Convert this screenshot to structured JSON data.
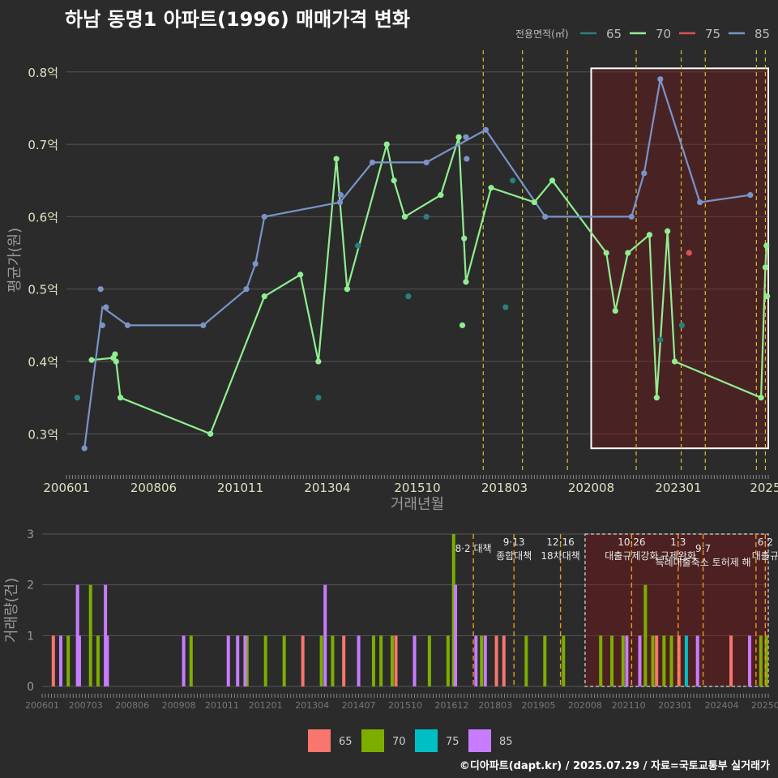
{
  "title": "하남 동명1 아파트(1996) 매매가격 변화",
  "footer": "©디아파트(dapt.kr) / 2025.07.29 / 자료=국토교통부 실거래가",
  "legend_title": "전용면적(㎡)",
  "colors": {
    "bg": "#2b2b2b",
    "s65": "#2a7f80",
    "s70": "#90ee90",
    "s75": "#e05050",
    "s85": "#7b93c8",
    "b65": "#f8766d",
    "b70": "#7cae00",
    "b75": "#00bfc4",
    "b85": "#c77cff"
  },
  "chart_data": [
    {
      "type": "line",
      "ylabel": "평균가(원)",
      "xlabel": "거래년월",
      "ylim": [
        0.25,
        0.83
      ],
      "y_ticks": [
        {
          "v": 0.3,
          "label": "0.3억"
        },
        {
          "v": 0.4,
          "label": "0.4억"
        },
        {
          "v": 0.5,
          "label": "0.5억"
        },
        {
          "v": 0.6,
          "label": "0.6억"
        },
        {
          "v": 0.7,
          "label": "0.7억"
        },
        {
          "v": 0.8,
          "label": "0.8억"
        }
      ],
      "x_ticks": [
        {
          "v": 2006.0,
          "label": "200601"
        },
        {
          "v": 2008.42,
          "label": "200806"
        },
        {
          "v": 2010.83,
          "label": "201011"
        },
        {
          "v": 2013.25,
          "label": "201304"
        },
        {
          "v": 2015.75,
          "label": "201510"
        },
        {
          "v": 2018.17,
          "label": "201803"
        },
        {
          "v": 2020.58,
          "label": "202008"
        },
        {
          "v": 2023.0,
          "label": "202301"
        },
        {
          "v": 2025.42,
          "label": "2025"
        }
      ],
      "xlim": [
        2006.0,
        2025.5
      ],
      "legend": [
        {
          "name": "65",
          "color": "#2a7f80"
        },
        {
          "name": "70",
          "color": "#90ee90"
        },
        {
          "name": "75",
          "color": "#e05050"
        },
        {
          "name": "85",
          "color": "#7b93c8"
        }
      ],
      "highlight": {
        "x0": 2020.58,
        "x1": 2025.5,
        "y0": 0.28,
        "y1": 0.805
      },
      "policy_lines": [
        2017.58,
        2018.67,
        2019.92,
        2021.83,
        2023.08,
        2023.75,
        2025.17,
        2025.42
      ],
      "points": {
        "65": [
          [
            2006.3,
            0.35
          ],
          [
            2013.0,
            0.35
          ],
          [
            2014.1,
            0.56
          ],
          [
            2015.5,
            0.49
          ],
          [
            2016.0,
            0.6
          ],
          [
            2018.2,
            0.475
          ],
          [
            2018.4,
            0.65
          ],
          [
            2022.5,
            0.43
          ],
          [
            2023.1,
            0.45
          ]
        ],
        "75": [
          [
            2023.3,
            0.55
          ]
        ],
        "70": [
          [
            2006.7,
            0.402
          ],
          [
            2007.3,
            0.405
          ],
          [
            2007.35,
            0.41
          ],
          [
            2007.38,
            0.4
          ],
          [
            2007.5,
            0.35
          ],
          [
            2010.0,
            0.3
          ],
          [
            2011.5,
            0.49
          ],
          [
            2012.5,
            0.52
          ],
          [
            2013.0,
            0.4
          ],
          [
            2013.5,
            0.68
          ],
          [
            2013.8,
            0.5
          ],
          [
            2014.9,
            0.7
          ],
          [
            2015.1,
            0.65
          ],
          [
            2015.4,
            0.6
          ],
          [
            2016.4,
            0.63
          ],
          [
            2016.9,
            0.71
          ],
          [
            2017.0,
            0.45
          ],
          [
            2017.05,
            0.57
          ],
          [
            2017.1,
            0.51
          ],
          [
            2017.8,
            0.64
          ],
          [
            2019.0,
            0.62
          ],
          [
            2019.5,
            0.65
          ],
          [
            2021.0,
            0.55
          ],
          [
            2021.25,
            0.47
          ],
          [
            2021.6,
            0.55
          ],
          [
            2022.2,
            0.575
          ],
          [
            2022.4,
            0.35
          ],
          [
            2022.7,
            0.58
          ],
          [
            2022.9,
            0.4
          ],
          [
            2025.3,
            0.35
          ],
          [
            2025.42,
            0.53
          ],
          [
            2025.45,
            0.56
          ],
          [
            2025.47,
            0.49
          ]
        ],
        "85": [
          [
            2006.5,
            0.28
          ],
          [
            2006.95,
            0.5
          ],
          [
            2007.0,
            0.45
          ],
          [
            2007.1,
            0.475
          ],
          [
            2007.7,
            0.45
          ],
          [
            2009.8,
            0.45
          ],
          [
            2011.0,
            0.5
          ],
          [
            2011.25,
            0.535
          ],
          [
            2011.5,
            0.6
          ],
          [
            2013.6,
            0.62
          ],
          [
            2013.62,
            0.63
          ],
          [
            2014.5,
            0.675
          ],
          [
            2016.0,
            0.675
          ],
          [
            2017.1,
            0.71
          ],
          [
            2017.12,
            0.68
          ],
          [
            2017.65,
            0.72
          ],
          [
            2019.3,
            0.6
          ],
          [
            2021.7,
            0.6
          ],
          [
            2022.05,
            0.66
          ],
          [
            2022.5,
            0.79
          ],
          [
            2023.6,
            0.62
          ],
          [
            2025.0,
            0.63
          ]
        ]
      },
      "lines": {
        "70": [
          [
            2006.7,
            0.402
          ],
          [
            2007.3,
            0.405
          ],
          [
            2007.38,
            0.4
          ],
          [
            2007.5,
            0.35
          ],
          [
            2010.0,
            0.3
          ],
          [
            2011.5,
            0.49
          ],
          [
            2012.5,
            0.52
          ],
          [
            2013.0,
            0.4
          ],
          [
            2013.5,
            0.68
          ],
          [
            2013.8,
            0.5
          ],
          [
            2014.9,
            0.7
          ],
          [
            2015.1,
            0.65
          ],
          [
            2015.4,
            0.6
          ],
          [
            2016.4,
            0.63
          ],
          [
            2016.9,
            0.71
          ],
          [
            2017.1,
            0.51
          ],
          [
            2017.8,
            0.64
          ],
          [
            2019.0,
            0.62
          ],
          [
            2019.5,
            0.65
          ],
          [
            2021.0,
            0.55
          ],
          [
            2021.25,
            0.47
          ],
          [
            2021.6,
            0.55
          ],
          [
            2022.2,
            0.575
          ],
          [
            2022.4,
            0.35
          ],
          [
            2022.7,
            0.58
          ],
          [
            2022.9,
            0.4
          ],
          [
            2025.3,
            0.35
          ],
          [
            2025.42,
            0.53
          ],
          [
            2025.45,
            0.56
          ]
        ],
        "85": [
          [
            2006.5,
            0.28
          ],
          [
            2007.0,
            0.475
          ],
          [
            2007.7,
            0.45
          ],
          [
            2009.8,
            0.45
          ],
          [
            2011.0,
            0.5
          ],
          [
            2011.25,
            0.535
          ],
          [
            2011.5,
            0.6
          ],
          [
            2013.6,
            0.62
          ],
          [
            2014.5,
            0.675
          ],
          [
            2016.0,
            0.675
          ],
          [
            2017.65,
            0.72
          ],
          [
            2019.3,
            0.6
          ],
          [
            2021.7,
            0.6
          ],
          [
            2022.05,
            0.66
          ],
          [
            2022.5,
            0.79
          ],
          [
            2023.6,
            0.62
          ],
          [
            2025.0,
            0.63
          ]
        ]
      }
    },
    {
      "type": "bar",
      "ylabel": "거래량(건)",
      "ylim": [
        0,
        3
      ],
      "y_ticks": [
        {
          "v": 0,
          "label": "0"
        },
        {
          "v": 1,
          "label": "1"
        },
        {
          "v": 2,
          "label": "2"
        },
        {
          "v": 3,
          "label": "3"
        }
      ],
      "x_ticks": [
        {
          "v": 2006.0,
          "label": "200601"
        },
        {
          "v": 2007.17,
          "label": "200703"
        },
        {
          "v": 2008.42,
          "label": "200806"
        },
        {
          "v": 2009.67,
          "label": "200908"
        },
        {
          "v": 2010.83,
          "label": "201011"
        },
        {
          "v": 2012.0,
          "label": "201201"
        },
        {
          "v": 2013.25,
          "label": "201304"
        },
        {
          "v": 2014.5,
          "label": "201407"
        },
        {
          "v": 2015.75,
          "label": "201510"
        },
        {
          "v": 2017.0,
          "label": "201612"
        },
        {
          "v": 2018.17,
          "label": "201803"
        },
        {
          "v": 2019.33,
          "label": "201905"
        },
        {
          "v": 2020.58,
          "label": "202008"
        },
        {
          "v": 2021.75,
          "label": "202110"
        },
        {
          "v": 2023.0,
          "label": "202301"
        },
        {
          "v": 2024.25,
          "label": "202404"
        },
        {
          "v": 2025.42,
          "label": "20250"
        }
      ],
      "xlim": [
        2006.0,
        2025.5
      ],
      "legend": [
        {
          "name": "65",
          "color": "#f8766d"
        },
        {
          "name": "70",
          "color": "#7cae00"
        },
        {
          "name": "75",
          "color": "#00bfc4"
        },
        {
          "name": "85",
          "color": "#c77cff"
        }
      ],
      "highlight": {
        "x0": 2020.58,
        "x1": 2025.5
      },
      "policy_lines": [
        2017.58,
        2018.67,
        2019.92,
        2021.83,
        2023.08,
        2023.75,
        2025.17,
        2025.42
      ],
      "policy_labels": [
        {
          "x": 2017.58,
          "lines": [
            "8·2 대책"
          ],
          "row": 1
        },
        {
          "x": 2018.67,
          "lines": [
            "9·13",
            "종합대책"
          ],
          "row": 0
        },
        {
          "x": 2019.92,
          "lines": [
            "12·16",
            "18차대책"
          ],
          "row": 0
        },
        {
          "x": 2021.83,
          "lines": [
            "10·26",
            "대출규제강화"
          ],
          "row": 0
        },
        {
          "x": 2023.08,
          "lines": [
            "1·3",
            "규제완화"
          ],
          "row": 0
        },
        {
          "x": 2023.75,
          "lines": [
            "9·7",
            "특례대출축소 토허제 해"
          ],
          "row": 1
        },
        {
          "x": 2025.42,
          "lines": [
            "6·2",
            "대출규"
          ],
          "row": 0
        }
      ],
      "bars": {
        "65": [
          [
            2006.3,
            1
          ],
          [
            2013.0,
            1
          ],
          [
            2014.1,
            1
          ],
          [
            2015.5,
            1
          ],
          [
            2016.0,
            1
          ],
          [
            2018.2,
            1
          ],
          [
            2018.4,
            1
          ],
          [
            2022.5,
            1
          ],
          [
            2023.1,
            1
          ],
          [
            2024.5,
            1
          ]
        ],
        "70": [
          [
            2006.7,
            1
          ],
          [
            2007.3,
            2
          ],
          [
            2007.5,
            1
          ],
          [
            2010.0,
            1
          ],
          [
            2011.5,
            1
          ],
          [
            2012.0,
            1
          ],
          [
            2012.5,
            1
          ],
          [
            2013.5,
            1
          ],
          [
            2013.8,
            1
          ],
          [
            2014.9,
            1
          ],
          [
            2015.1,
            1
          ],
          [
            2015.4,
            1
          ],
          [
            2016.4,
            1
          ],
          [
            2016.9,
            1
          ],
          [
            2017.05,
            3
          ],
          [
            2017.8,
            1
          ],
          [
            2019.0,
            1
          ],
          [
            2019.5,
            1
          ],
          [
            2020.0,
            1
          ],
          [
            2021.0,
            1
          ],
          [
            2021.3,
            1
          ],
          [
            2021.6,
            1
          ],
          [
            2022.2,
            2
          ],
          [
            2022.4,
            1
          ],
          [
            2022.7,
            1
          ],
          [
            2022.9,
            1
          ],
          [
            2025.3,
            1
          ],
          [
            2025.45,
            1
          ]
        ],
        "75": [
          [
            2023.3,
            1
          ]
        ],
        "85": [
          [
            2006.5,
            1
          ],
          [
            2006.95,
            2
          ],
          [
            2007.0,
            1
          ],
          [
            2007.7,
            2
          ],
          [
            2007.75,
            1
          ],
          [
            2009.8,
            1
          ],
          [
            2011.0,
            1
          ],
          [
            2011.25,
            1
          ],
          [
            2011.45,
            1
          ],
          [
            2013.6,
            2
          ],
          [
            2014.5,
            1
          ],
          [
            2016.0,
            1
          ],
          [
            2017.1,
            2
          ],
          [
            2017.65,
            1
          ],
          [
            2017.9,
            1
          ],
          [
            2021.7,
            1
          ],
          [
            2022.05,
            1
          ],
          [
            2023.6,
            1
          ],
          [
            2025.0,
            1
          ]
        ]
      }
    }
  ]
}
